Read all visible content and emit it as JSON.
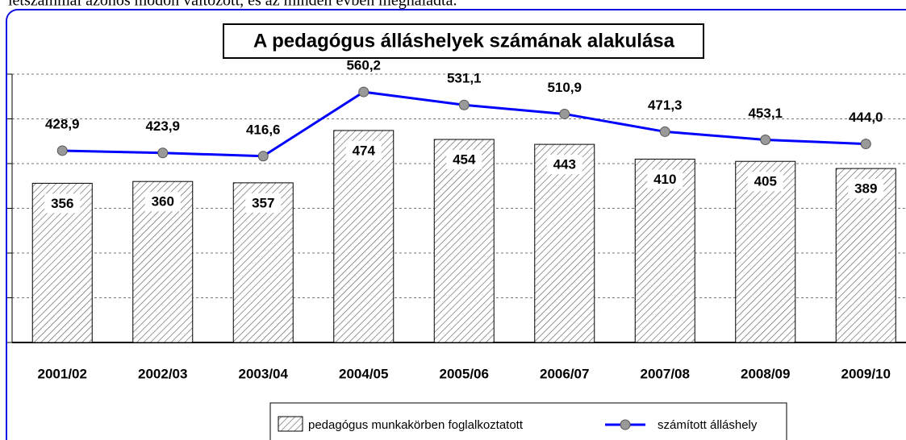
{
  "intro_text": "létszámmal azonos módon változott, és az minden évben meghaladta.",
  "chart_data": {
    "type": "bar_line",
    "title": "A pedagógus álláshelyek számának alakulása",
    "categories": [
      "2001/02",
      "2002/03",
      "2003/04",
      "2004/05",
      "2005/06",
      "2006/07",
      "2007/08",
      "2008/09",
      "2009/10"
    ],
    "series": [
      {
        "name": "pedagógus munkakörben foglalkoztatott",
        "type": "bar",
        "color": "#555555",
        "values": [
          356,
          360,
          357,
          474,
          454,
          443,
          410,
          405,
          389
        ]
      },
      {
        "name": "számított álláshely",
        "type": "line",
        "color": "#0000ff",
        "marker_color": "#999999",
        "values": [
          428.9,
          423.9,
          416.6,
          560.2,
          531.1,
          510.9,
          471.3,
          453.1,
          444.0
        ],
        "value_labels": [
          "428,9",
          "423,9",
          "416,6",
          "560,2",
          "531,1",
          "510,9",
          "471,3",
          "453,1",
          "444,0"
        ]
      }
    ],
    "ylim": [
      0,
      600
    ],
    "yticks": [
      0,
      100,
      200,
      300,
      400,
      500,
      600
    ],
    "grid": true,
    "legend": "bottom"
  }
}
